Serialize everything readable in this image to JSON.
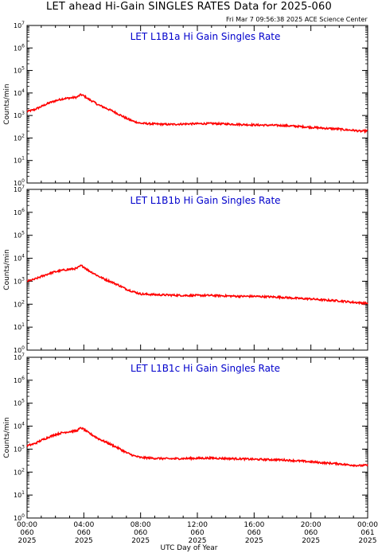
{
  "header": {
    "title": "LET ahead Hi-Gain SINGLES RATES Data for 2025-060",
    "timestamp": "Fri Mar  7 09:56:38 2025 ACE Science Center"
  },
  "footer": {
    "xaxis_title": "UTC Day of Year"
  },
  "colors": {
    "series": "#ff0000",
    "panel_title": "#0000cc",
    "axes": "#000000"
  },
  "x_tick_labels": [
    {
      "time": "00:00",
      "day": "060",
      "year": "2025"
    },
    {
      "time": "04:00",
      "day": "060",
      "year": "2025"
    },
    {
      "time": "08:00",
      "day": "060",
      "year": "2025"
    },
    {
      "time": "12:00",
      "day": "060",
      "year": "2025"
    },
    {
      "time": "16:00",
      "day": "060",
      "year": "2025"
    },
    {
      "time": "20:00",
      "day": "060",
      "year": "2025"
    },
    {
      "time": "00:00",
      "day": "061",
      "year": "2025"
    }
  ],
  "chart_data": [
    {
      "type": "line",
      "title": "LET L1B1a Hi Gain Singles Rate",
      "ylabel": "Counts/min",
      "yscale": "log",
      "ylim": [
        1,
        10000000
      ],
      "xlim": [
        0,
        24
      ],
      "xunit": "hours UTC",
      "series": [
        {
          "x": [
            0,
            0.5,
            1,
            1.5,
            2,
            2.5,
            3,
            3.5,
            3.8,
            4,
            4.3,
            4.7,
            5,
            5.5,
            6,
            6.5,
            7,
            7.5,
            8,
            9,
            10,
            11,
            12,
            13,
            14,
            15,
            16,
            17,
            18,
            19,
            20,
            21,
            22,
            22.5,
            23,
            23.5,
            24
          ],
          "y": [
            1500,
            1800,
            2500,
            3500,
            4500,
            5500,
            6000,
            6500,
            8500,
            7500,
            5500,
            4000,
            3000,
            2200,
            1600,
            1100,
            750,
            550,
            450,
            420,
            400,
            420,
            430,
            440,
            420,
            400,
            380,
            370,
            360,
            330,
            300,
            270,
            250,
            230,
            220,
            200,
            210
          ]
        }
      ]
    },
    {
      "type": "line",
      "title": "LET L1B1b Hi Gain Singles Rate",
      "ylabel": "Counts/min",
      "yscale": "log",
      "ylim": [
        1,
        10000000
      ],
      "xlim": [
        0,
        24
      ],
      "xunit": "hours UTC",
      "series": [
        {
          "x": [
            0,
            0.5,
            1,
            1.5,
            2,
            2.5,
            3,
            3.5,
            3.8,
            4,
            4.3,
            4.7,
            5,
            5.5,
            6,
            6.5,
            7,
            7.5,
            8,
            9,
            10,
            11,
            12,
            13,
            14,
            15,
            16,
            17,
            18,
            19,
            20,
            21,
            22,
            22.5,
            23,
            23.5,
            24
          ],
          "y": [
            1000,
            1200,
            1600,
            2100,
            2600,
            3000,
            3300,
            3600,
            4800,
            4200,
            3000,
            2200,
            1700,
            1200,
            900,
            650,
            450,
            350,
            280,
            260,
            250,
            240,
            240,
            240,
            230,
            220,
            220,
            210,
            200,
            180,
            170,
            150,
            140,
            130,
            120,
            115,
            110
          ]
        }
      ]
    },
    {
      "type": "line",
      "title": "LET L1B1c Hi Gain Singles Rate",
      "ylabel": "Counts/min",
      "yscale": "log",
      "ylim": [
        1,
        10000000
      ],
      "xlim": [
        0,
        24
      ],
      "xunit": "hours UTC",
      "series": [
        {
          "x": [
            0,
            0.5,
            1,
            1.5,
            2,
            2.5,
            3,
            3.5,
            3.8,
            4,
            4.3,
            4.7,
            5,
            5.5,
            6,
            6.5,
            7,
            7.5,
            8,
            9,
            10,
            11,
            12,
            13,
            14,
            15,
            16,
            17,
            18,
            19,
            20,
            21,
            22,
            22.5,
            23,
            23.5,
            24
          ],
          "y": [
            1400,
            1700,
            2400,
            3300,
            4300,
            5200,
            5800,
            6300,
            8500,
            7300,
            5300,
            3800,
            2900,
            2100,
            1500,
            1050,
            700,
            520,
            430,
            400,
            380,
            390,
            400,
            410,
            390,
            380,
            360,
            350,
            340,
            310,
            280,
            250,
            230,
            210,
            200,
            190,
            200
          ]
        }
      ]
    }
  ]
}
